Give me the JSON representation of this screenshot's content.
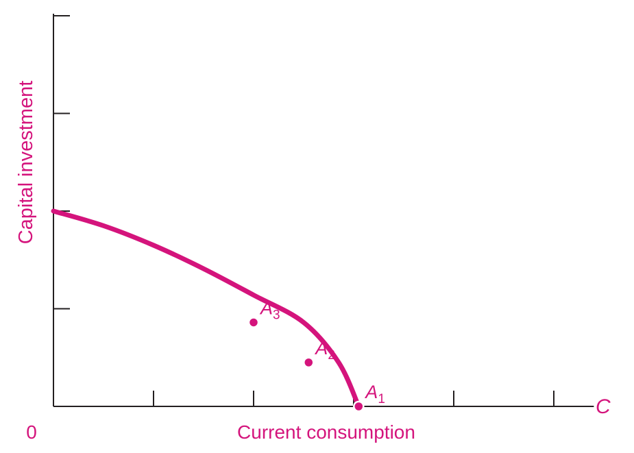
{
  "chart_data": {
    "type": "line",
    "title": "",
    "xlabel": "Current consumption",
    "ylabel": "Capital investment",
    "origin_label": "0",
    "x_axis_end_label": "C",
    "xlim": [
      0,
      5.4
    ],
    "ylim": [
      0,
      4
    ],
    "x_ticks": [
      1,
      2,
      3,
      4,
      5
    ],
    "y_ticks": [
      1,
      2,
      3,
      4
    ],
    "tick_labels_shown": false,
    "grid": false,
    "legend": "none",
    "series": [
      {
        "x": [
          0,
          0.5,
          1.0,
          1.5,
          2.0,
          2.5,
          2.85,
          3.05
        ],
        "y": [
          2.0,
          1.85,
          1.65,
          1.41,
          1.14,
          0.86,
          0.45,
          0.0
        ]
      }
    ],
    "points": [
      {
        "label": "A",
        "sub": "1",
        "x": 3.05,
        "y": 0.0
      },
      {
        "label": "A",
        "sub": "2",
        "x": 2.55,
        "y": 0.45
      },
      {
        "label": "A",
        "sub": "3",
        "x": 2.0,
        "y": 0.86
      }
    ],
    "colors": {
      "curve": "#d4147c",
      "axes": "#231f20",
      "labels": "#d4147c"
    }
  }
}
